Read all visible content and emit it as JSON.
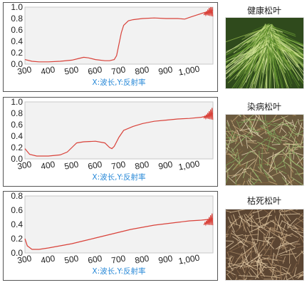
{
  "chart_data": [
    {
      "type": "line",
      "name": "healthy",
      "xlabel": "X:波长,Y:反射率",
      "xlim": [
        300,
        1100
      ],
      "ylim": [
        0,
        1.0
      ],
      "xticks": [
        "300",
        "400",
        "500",
        "600",
        "700",
        "800",
        "900",
        "1,000"
      ],
      "yticks": [
        "0.0",
        "0.2",
        "0.4",
        "0.6",
        "0.8",
        "1.0"
      ],
      "x": [
        300,
        330,
        360,
        400,
        450,
        500,
        530,
        550,
        570,
        600,
        640,
        660,
        680,
        690,
        700,
        710,
        720,
        740,
        760,
        800,
        850,
        900,
        950,
        980,
        1000,
        1030,
        1060,
        1090,
        1100
      ],
      "y": [
        0.08,
        0.05,
        0.04,
        0.04,
        0.05,
        0.07,
        0.1,
        0.12,
        0.11,
        0.08,
        0.06,
        0.06,
        0.08,
        0.15,
        0.35,
        0.55,
        0.68,
        0.76,
        0.78,
        0.8,
        0.81,
        0.8,
        0.8,
        0.79,
        0.82,
        0.86,
        0.9,
        0.93,
        0.95
      ]
    },
    {
      "type": "line",
      "name": "diseased",
      "xlabel": "X:波长,Y:反射率",
      "xlim": [
        300,
        1100
      ],
      "ylim": [
        0,
        1.0
      ],
      "xticks": [
        "300",
        "400",
        "500",
        "600",
        "700",
        "800",
        "900",
        "1,000"
      ],
      "yticks": [
        "0.0",
        "0.2",
        "0.4",
        "0.6",
        "0.8",
        "1.0"
      ],
      "x": [
        300,
        320,
        350,
        400,
        450,
        480,
        500,
        520,
        550,
        600,
        640,
        660,
        670,
        680,
        700,
        720,
        760,
        800,
        850,
        900,
        950,
        1000,
        1050,
        1080,
        1100
      ],
      "y": [
        0.18,
        0.08,
        0.05,
        0.05,
        0.07,
        0.12,
        0.2,
        0.28,
        0.3,
        0.31,
        0.28,
        0.2,
        0.18,
        0.22,
        0.38,
        0.5,
        0.57,
        0.62,
        0.66,
        0.68,
        0.7,
        0.71,
        0.73,
        0.76,
        0.8
      ]
    },
    {
      "type": "line",
      "name": "dead",
      "xlabel": "X:波长,Y:反射率",
      "xlim": [
        300,
        1100
      ],
      "ylim": [
        0,
        0.8
      ],
      "xticks": [
        "300",
        "400",
        "500",
        "600",
        "700",
        "800",
        "900",
        "1,000"
      ],
      "yticks": [
        "0.0",
        "0.2",
        "0.4",
        "0.6",
        "0.8"
      ],
      "x": [
        300,
        310,
        330,
        360,
        400,
        450,
        500,
        550,
        600,
        650,
        700,
        750,
        800,
        850,
        900,
        950,
        1000,
        1050,
        1080,
        1100
      ],
      "y": [
        0.2,
        0.1,
        0.05,
        0.05,
        0.07,
        0.1,
        0.13,
        0.17,
        0.21,
        0.25,
        0.29,
        0.33,
        0.36,
        0.39,
        0.41,
        0.43,
        0.45,
        0.46,
        0.47,
        0.48
      ]
    }
  ],
  "photos": [
    {
      "caption": "健康松叶",
      "icon": "healthy-pine-needles-photo"
    },
    {
      "caption": "染病松叶",
      "icon": "diseased-pine-needles-photo"
    },
    {
      "caption": "枯死松叶",
      "icon": "dead-pine-needles-photo"
    }
  ]
}
